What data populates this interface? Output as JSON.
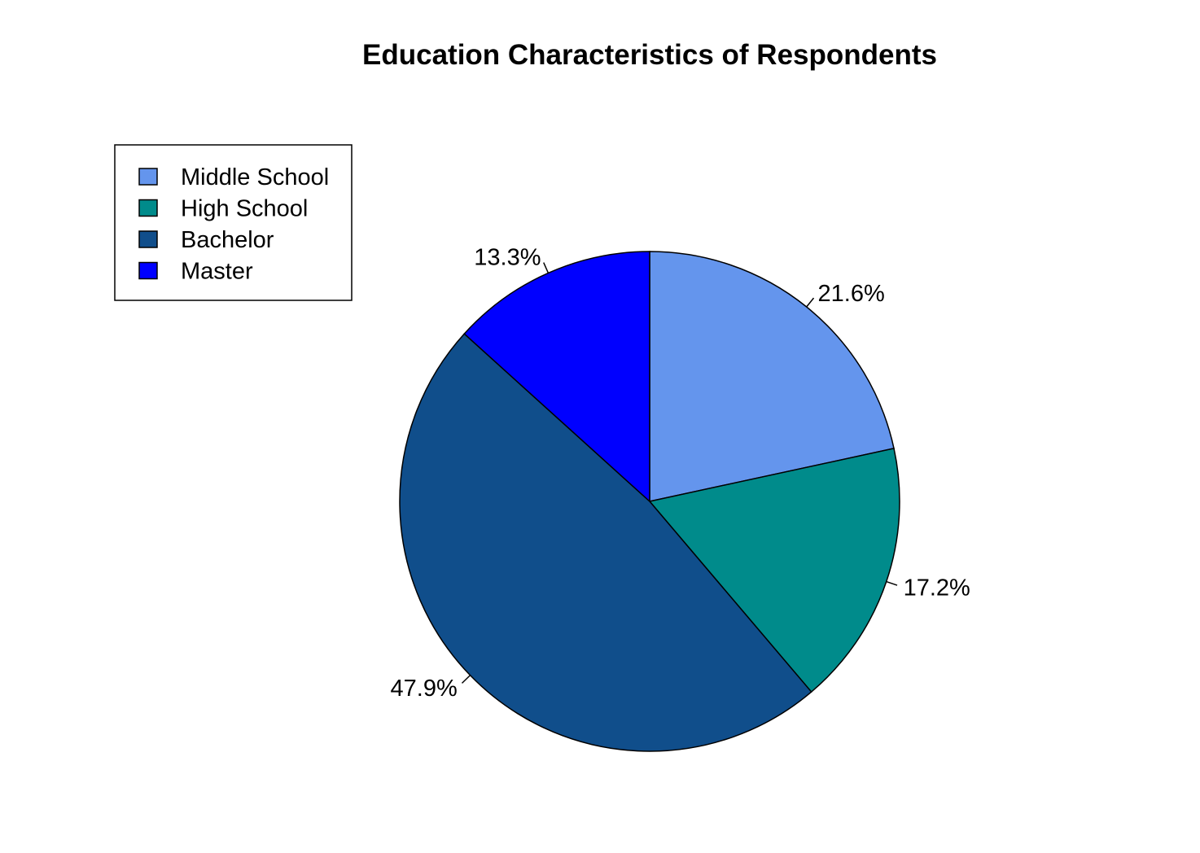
{
  "chart_data": {
    "type": "pie",
    "title": "Education Characteristics of Respondents",
    "categories": [
      "Middle School",
      "High School",
      "Bachelor",
      "Master"
    ],
    "values": [
      21.6,
      17.2,
      47.9,
      13.3
    ],
    "labels": [
      "21.6%",
      "17.2%",
      "47.9%",
      "13.3%"
    ],
    "colors": [
      "#6495ED",
      "#008B8B",
      "#104E8B",
      "#0000FF"
    ],
    "start_angle_deg": 90,
    "direction": "clockwise",
    "legend_position": "top-left"
  }
}
